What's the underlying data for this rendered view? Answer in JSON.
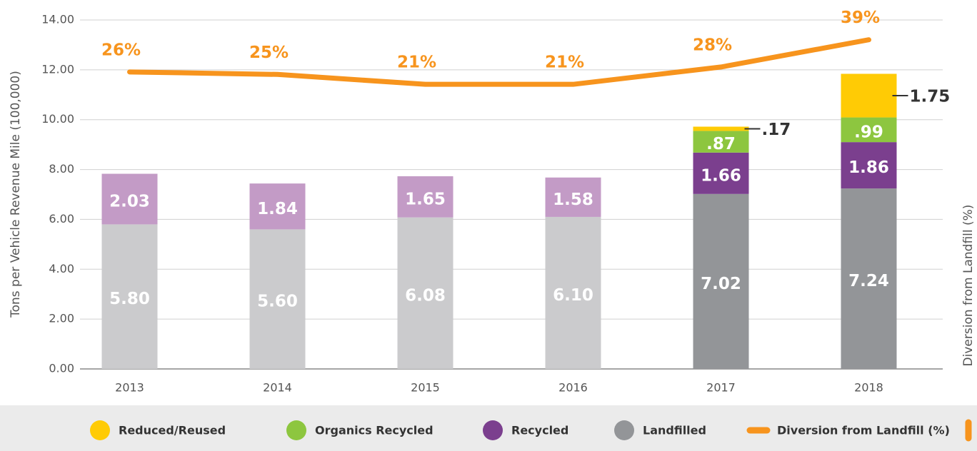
{
  "chart_data": {
    "type": "bar",
    "stacked": true,
    "categories": [
      "2013",
      "2014",
      "2015",
      "2016",
      "2017",
      "2018"
    ],
    "ylabel": "Tons per Vehicle Revenue Mile (100,000)",
    "y2label": "Diversion from Landfill (%)",
    "ylim": [
      0,
      14
    ],
    "yticks": [
      {
        "value": 0,
        "label": "0.00"
      },
      {
        "value": 2,
        "label": "2.00"
      },
      {
        "value": 4,
        "label": "4.00"
      },
      {
        "value": 6,
        "label": "6.00"
      },
      {
        "value": 8,
        "label": "8.00"
      },
      {
        "value": 10,
        "label": "10.00"
      },
      {
        "value": 12,
        "label": "12.00"
      },
      {
        "value": 14,
        "label": "14.00"
      }
    ],
    "y2lim": [
      -94,
      47
    ],
    "grid": true,
    "legend": "bottom",
    "series": [
      {
        "name": "Landfilled",
        "color": "#939598",
        "colors": [
          "#cbcbcd",
          "#cbcbcd",
          "#cbcbcd",
          "#cbcbcd",
          "#939598",
          "#939598"
        ],
        "values": [
          5.8,
          5.6,
          6.08,
          6.1,
          7.02,
          7.24
        ],
        "value_labels": [
          "5.80",
          "5.60",
          "6.08",
          "6.10",
          "7.02",
          "7.24"
        ]
      },
      {
        "name": "Recycled",
        "color": "#7b3f8e",
        "colors": [
          "#c39bc6",
          "#c39bc6",
          "#c39bc6",
          "#c39bc6",
          "#7b3f8e",
          "#7b3f8e"
        ],
        "values": [
          2.03,
          1.84,
          1.65,
          1.58,
          1.66,
          1.86
        ]
      },
      {
        "name": "Organics Recycled",
        "color": "#8dc63f",
        "values": [
          null,
          null,
          null,
          null,
          0.87,
          0.99
        ],
        "value_labels": [
          null,
          null,
          null,
          null,
          ".87",
          ".99"
        ]
      },
      {
        "name": "Reduced/Reused",
        "color": "#ffcb05",
        "label_outside": true,
        "values": [
          null,
          null,
          null,
          null,
          0.17,
          1.75
        ],
        "value_labels": [
          null,
          null,
          null,
          null,
          ".17",
          "1.75"
        ]
      },
      {
        "name": "Diversion from Landfill (%)",
        "type": "line",
        "axis": "y2",
        "color": "#f7941d",
        "values": [
          26,
          25,
          21,
          21,
          28,
          39
        ],
        "value_labels": [
          "26%",
          "25%",
          "21%",
          "21%",
          "28%",
          "39%"
        ]
      }
    ]
  }
}
